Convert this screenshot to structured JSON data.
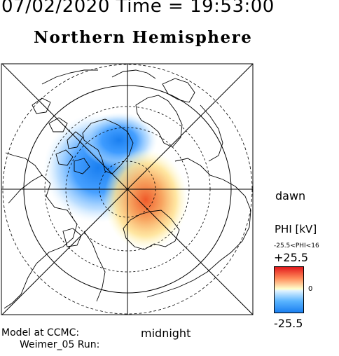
{
  "header": {
    "datetime": "07/02/2020 Time = 19:53:00",
    "title": "Northern Hemisphere"
  },
  "labels": {
    "dawn": "dawn",
    "midnight": "midnight",
    "model_line1": "Model at CCMC:",
    "model_line2": "Weimer_05 Run:"
  },
  "colorbar": {
    "title": "PHI [kV]",
    "range_text": "-25.5<PHI<16",
    "max_label": "+25.5",
    "zero_label": "0",
    "min_label": "-25.5",
    "colors": {
      "positive": "#e31a1c",
      "neutral": "#ffffcc",
      "negative": "#1a7ff0"
    }
  },
  "potential_cells": [
    {
      "sign": "negative",
      "description": "dusk cell"
    },
    {
      "sign": "positive",
      "description": "dawn cell"
    }
  ]
}
